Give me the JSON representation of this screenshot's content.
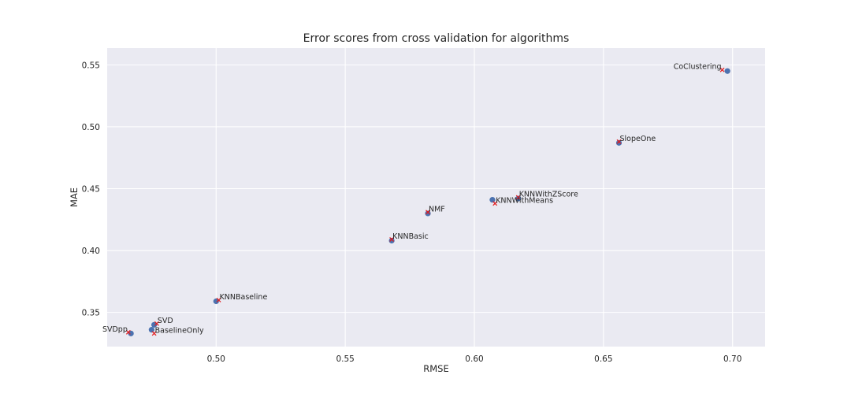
{
  "chart_data": {
    "type": "scatter",
    "title": "Error scores from cross validation for algorithms",
    "xlabel": "RMSE",
    "ylabel": "MAE",
    "xlim": [
      0.4578,
      0.7126
    ],
    "ylim": [
      0.3224,
      0.5636
    ],
    "xticks": [
      0.5,
      0.55,
      0.6,
      0.65,
      0.7
    ],
    "xtick_labels": [
      "0.50",
      "0.55",
      "0.60",
      "0.65",
      "0.70"
    ],
    "yticks": [
      0.35,
      0.4,
      0.45,
      0.5,
      0.55
    ],
    "ytick_labels": [
      "0.35",
      "0.40",
      "0.45",
      "0.50",
      "0.55"
    ],
    "grid": true,
    "background": "#eaeaf2",
    "point_color": "#4c72b0",
    "marker_color": "#e41a1c",
    "points": [
      {
        "label": "CoClustering",
        "x": 0.698,
        "y": 0.545,
        "label_x": 0.696,
        "label_y": 0.546,
        "anchor": "end"
      },
      {
        "label": "SlopeOne",
        "x": 0.656,
        "y": 0.487,
        "label_x": 0.656,
        "label_y": 0.488,
        "anchor": "start"
      },
      {
        "label": "KNNWithZScore",
        "x": 0.617,
        "y": 0.442,
        "label_x": 0.617,
        "label_y": 0.443,
        "anchor": "start"
      },
      {
        "label": "KNNWithMeans",
        "x": 0.607,
        "y": 0.441,
        "label_x": 0.608,
        "label_y": 0.438,
        "anchor": "start"
      },
      {
        "label": "NMF",
        "x": 0.582,
        "y": 0.43,
        "label_x": 0.582,
        "label_y": 0.431,
        "anchor": "start"
      },
      {
        "label": "KNNBasic",
        "x": 0.568,
        "y": 0.408,
        "label_x": 0.568,
        "label_y": 0.409,
        "anchor": "start"
      },
      {
        "label": "KNNBaseline",
        "x": 0.5,
        "y": 0.359,
        "label_x": 0.501,
        "label_y": 0.36,
        "anchor": "start"
      },
      {
        "label": "SVD",
        "x": 0.476,
        "y": 0.34,
        "label_x": 0.477,
        "label_y": 0.341,
        "anchor": "start"
      },
      {
        "label": "BaselineOnly",
        "x": 0.475,
        "y": 0.336,
        "label_x": 0.476,
        "label_y": 0.333,
        "anchor": "start"
      },
      {
        "label": "SVDpp",
        "x": 0.467,
        "y": 0.333,
        "label_x": 0.466,
        "label_y": 0.334,
        "anchor": "end"
      }
    ]
  }
}
